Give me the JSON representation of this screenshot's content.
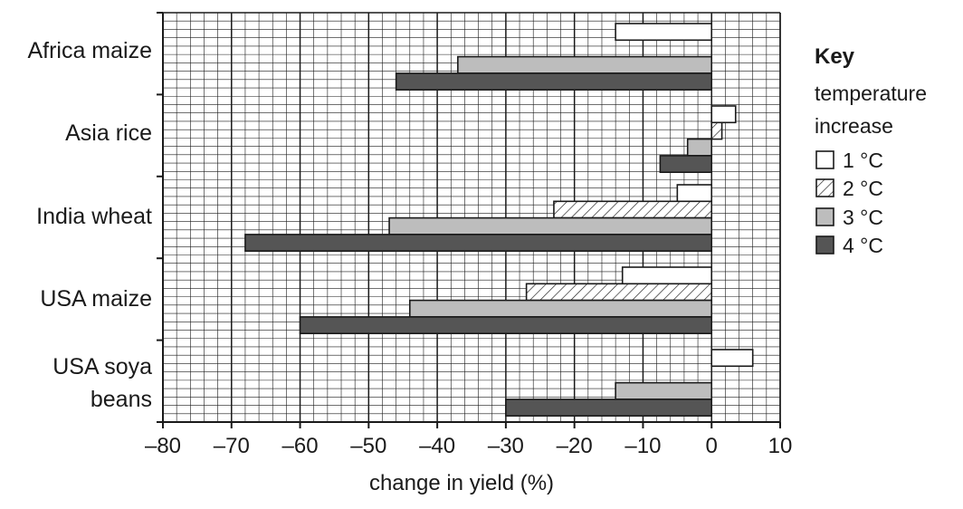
{
  "chart_data": {
    "type": "bar",
    "orientation": "horizontal",
    "categories": [
      [
        "Africa maize"
      ],
      [
        "Asia rice"
      ],
      [
        "India wheat"
      ],
      [
        "USA maize"
      ],
      [
        "USA soya",
        "beans"
      ]
    ],
    "series": [
      {
        "name": "1 °C",
        "pattern": "white",
        "values": [
          -14,
          3.5,
          -5,
          -13,
          6
        ]
      },
      {
        "name": "2 °C",
        "pattern": "hatched",
        "values": [
          null,
          1.5,
          -23,
          -27,
          null
        ]
      },
      {
        "name": "3 °C",
        "pattern": "light-grey",
        "values": [
          -37,
          -3.5,
          -47,
          -44,
          -14
        ]
      },
      {
        "name": "4 °C",
        "pattern": "dark-grey",
        "values": [
          -46,
          -7.5,
          -68,
          -60,
          -30
        ]
      }
    ],
    "xlabel": "change in yield (%)",
    "xlim": [
      -80,
      10
    ],
    "xticks": [
      -80,
      -70,
      -60,
      -50,
      -40,
      -30,
      -20,
      -10,
      0,
      10
    ],
    "xtick_labels": [
      "–80",
      "–70",
      "–60",
      "–50",
      "–40",
      "–30",
      "–20",
      "–10",
      "0",
      "10"
    ],
    "grid": "fine graph-paper grid, minor every 2 units",
    "legend": {
      "title": "Key",
      "subtitle_lines": [
        "temperature",
        "increase"
      ],
      "placement": "right"
    },
    "colors": {
      "1": "#ffffff",
      "2": "#ffffff",
      "3": "#bdbdbd",
      "4": "#555555",
      "outline": "#1a1a1a"
    }
  }
}
